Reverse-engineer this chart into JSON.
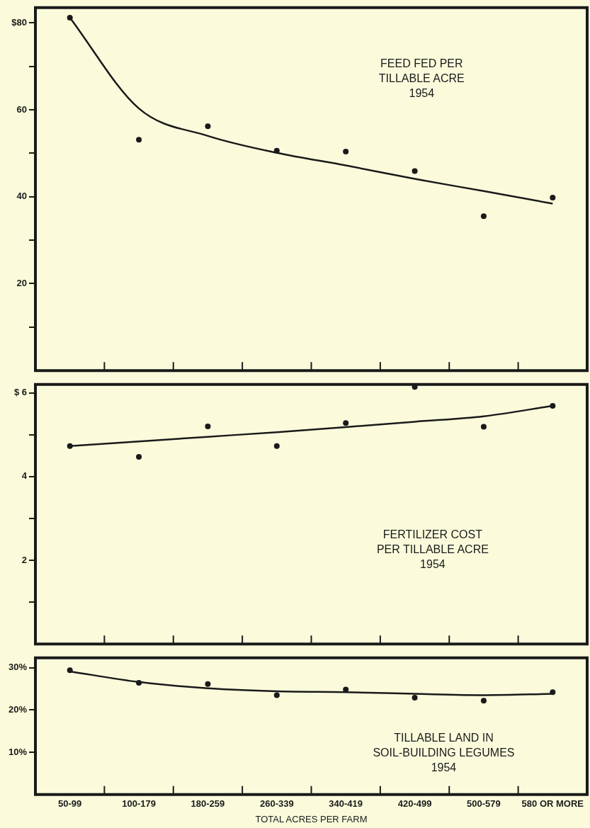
{
  "chart_data": [
    {
      "type": "line",
      "title": "FEED FED PER\nTILLABLE ACRE\n1954",
      "categories": [
        null,
        null,
        null,
        null,
        null,
        null,
        null,
        null
      ],
      "series": [
        {
          "type": "scatter",
          "color": "#1a1a1a",
          "marker": "circle",
          "values": [
            81.2,
            53.1,
            56.2,
            50.6,
            50.4,
            45.9,
            35.5,
            39.8
          ]
        },
        {
          "color": "#1a1a1a",
          "marker": "none",
          "line_style": "solid",
          "values": [
            81.2,
            60.3,
            54.0,
            50.1,
            47.2,
            44.1,
            41.3,
            38.4
          ]
        }
      ],
      "ylim": [
        0,
        83.5
      ],
      "yticks": [
        {
          "value": 10,
          "label": null
        },
        20,
        {
          "value": 30,
          "label": null
        },
        40,
        {
          "value": 50,
          "label": null
        },
        60,
        {
          "value": 70,
          "label": null
        },
        {
          "value": 80,
          "label": "$80"
        }
      ],
      "tick_labels": "y",
      "grid": false,
      "legend": false
    },
    {
      "type": "line",
      "title": "FERTILIZER COST\nPER TILLABLE ACRE\n1954",
      "categories": [
        null,
        null,
        null,
        null,
        null,
        null,
        null,
        null
      ],
      "series": [
        {
          "type": "scatter",
          "color": "#1a1a1a",
          "marker": "circle",
          "values": [
            4.73,
            4.47,
            5.2,
            4.73,
            5.28,
            6.14,
            5.19,
            5.69
          ]
        },
        {
          "color": "#1a1a1a",
          "marker": "none",
          "line_style": "solid",
          "values": [
            4.73,
            4.84,
            4.95,
            5.06,
            5.18,
            5.31,
            5.44,
            5.69
          ]
        }
      ],
      "ylim": [
        0,
        6.2
      ],
      "yticks": [
        {
          "value": 1,
          "label": null
        },
        2,
        {
          "value": 3,
          "label": null
        },
        4,
        {
          "value": 5,
          "label": null
        },
        {
          "value": 6,
          "label": "$ 6"
        }
      ],
      "tick_labels": "y",
      "grid": false,
      "legend": false
    },
    {
      "type": "line",
      "title": "TILLABLE LAND IN\nSOIL-BUILDING LEGUMES\n1954",
      "xlabel": "TOTAL ACRES PER FARM",
      "categories": [
        "50-99",
        "100-179",
        "180-259",
        "260-339",
        "340-419",
        "420-499",
        "500-579",
        "580 OR MORE"
      ],
      "series": [
        {
          "type": "scatter",
          "color": "#1a1a1a",
          "marker": "circle",
          "values": [
            29.4,
            26.4,
            26.1,
            23.5,
            24.8,
            22.9,
            22.2,
            24.2
          ]
        },
        {
          "color": "#1a1a1a",
          "marker": "none",
          "line_style": "solid",
          "values": [
            29.1,
            26.6,
            25.1,
            24.4,
            24.2,
            23.8,
            23.5,
            23.8
          ]
        }
      ],
      "ylim": [
        0,
        32.3
      ],
      "yticks": [
        {
          "value": 10,
          "label": "10%"
        },
        {
          "value": 20,
          "label": "20%"
        },
        {
          "value": 30,
          "label": "30%"
        }
      ],
      "grid": false,
      "legend": false
    }
  ]
}
